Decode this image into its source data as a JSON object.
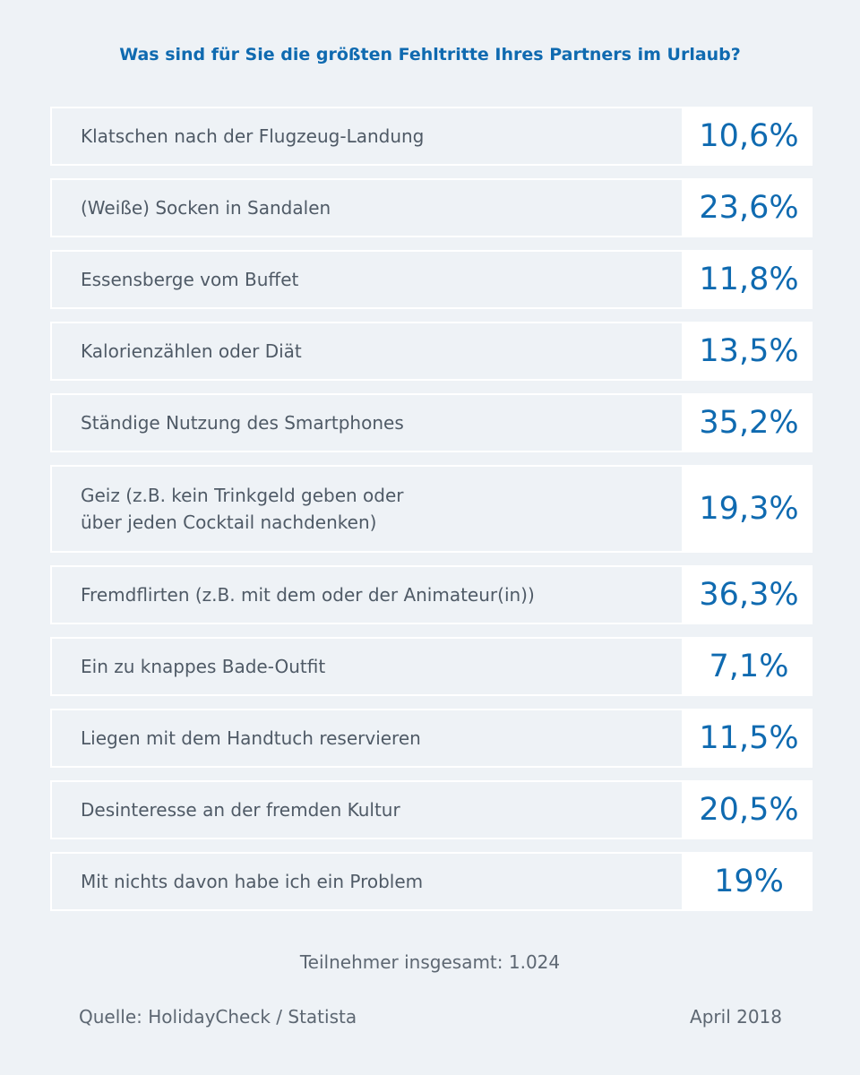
{
  "chart_data": {
    "type": "table",
    "title": "Was sind für Sie die größten Fehltritte Ihres Partners im Urlaub?",
    "unit": "%",
    "rows": [
      {
        "label": "Klatschen nach der Flugzeug-Landung",
        "value": 10.6,
        "display": "10,6%"
      },
      {
        "label": "(Weiße) Socken in Sandalen",
        "value": 23.6,
        "display": "23,6%"
      },
      {
        "label": "Essensberge vom Buffet",
        "value": 11.8,
        "display": "11,8%"
      },
      {
        "label": "Kalorienzählen oder Diät",
        "value": 13.5,
        "display": "13,5%"
      },
      {
        "label": "Ständige Nutzung des Smartphones",
        "value": 35.2,
        "display": "35,2%"
      },
      {
        "label": "Geiz (z.B. kein Trinkgeld geben oder\nüber jeden Cocktail nachdenken)",
        "value": 19.3,
        "display": "19,3%"
      },
      {
        "label": "Fremdflirten (z.B. mit dem oder der Animateur(in))",
        "value": 36.3,
        "display": "36,3%"
      },
      {
        "label": "Ein zu knappes Bade-Outfit",
        "value": 7.1,
        "display": "7,1%"
      },
      {
        "label": "Liegen mit dem Handtuch reservieren",
        "value": 11.5,
        "display": "11,5%"
      },
      {
        "label": "Desinteresse an der fremden Kultur",
        "value": 20.5,
        "display": "20,5%"
      },
      {
        "label": "Mit nichts davon habe ich ein Problem",
        "value": 19,
        "display": "19%"
      }
    ]
  },
  "footer": {
    "participants": "Teilnehmer insgesamt: 1.024",
    "source": "Quelle: HolidayCheck / Statista",
    "date": "April 2018"
  }
}
